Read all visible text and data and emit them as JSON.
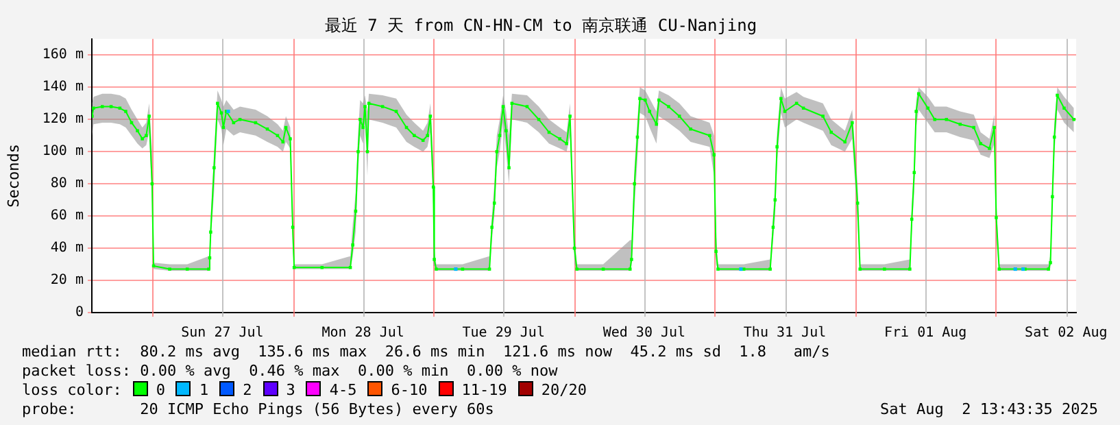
{
  "chart_data": {
    "type": "line",
    "title": "最近 7 天 from CN-HN-CM to 南京联通 CU-Nanjing",
    "ylabel": "Seconds",
    "xlim": [
      "2025-07-26T13:43",
      "2025-08-02T13:43"
    ],
    "xticks": [
      {
        "value": "2025-07-27T00:00",
        "label": null
      },
      {
        "value": "2025-07-27T12:00",
        "label": "Sun 27 Jul"
      },
      {
        "value": "2025-07-28T00:00",
        "label": null
      },
      {
        "value": "2025-07-28T12:00",
        "label": "Mon 28 Jul"
      },
      {
        "value": "2025-07-29T00:00",
        "label": null
      },
      {
        "value": "2025-07-29T12:00",
        "label": "Tue 29 Jul"
      },
      {
        "value": "2025-07-30T00:00",
        "label": null
      },
      {
        "value": "2025-07-30T12:00",
        "label": "Wed 30 Jul"
      },
      {
        "value": "2025-07-31T00:00",
        "label": null
      },
      {
        "value": "2025-07-31T12:00",
        "label": "Thu 31 Jul"
      },
      {
        "value": "2025-08-01T00:00",
        "label": null
      },
      {
        "value": "2025-08-01T12:00",
        "label": "Fri 01 Aug"
      },
      {
        "value": "2025-08-02T00:00",
        "label": null
      },
      {
        "value": "2025-08-02T12:00",
        "label": "Sat 02 Aug"
      }
    ],
    "ylim": [
      0,
      170
    ],
    "yticks": [
      0,
      {
        "value": 20,
        "label": "20 m"
      },
      {
        "value": 40,
        "label": "40 m"
      },
      {
        "value": 60,
        "label": "60 m"
      },
      {
        "value": 80,
        "label": "80 m"
      },
      {
        "value": 100,
        "label": "100 m"
      },
      {
        "value": 120,
        "label": "120 m"
      },
      {
        "value": 140,
        "label": "140 m"
      },
      {
        "value": 160,
        "label": "160 m"
      }
    ],
    "grid": true,
    "legend": "bottom",
    "legend_title": "loss color:",
    "marker": "square",
    "annotations": [
      "median rtt:  80.2 ms avg  135.6 ms max  26.6 ms min  121.6 ms now  45.2 ms sd  1.8   am/s",
      "packet loss: 0.00 % avg  0.46 % max  0.00 % min  0.00 % now",
      "probe:       20 ICMP Echo Pings (56 Bytes) every 60s",
      "Sat Aug  2 13:43:35 2025"
    ],
    "series": [
      {
        "name": "0",
        "color": "#00ff00",
        "x": [
          "2025-07-26T13:45",
          "2025-07-26T14:00",
          "2025-07-26T15:30",
          "2025-07-26T17:00",
          "2025-07-26T18:30",
          "2025-07-26T19:30",
          "2025-07-26T20:30",
          "2025-07-26T21:30",
          "2025-07-26T22:20",
          "2025-07-26T23:00",
          "2025-07-26T23:30",
          "2025-07-27T00:00",
          "2025-07-27T00:15",
          "2025-07-27T03:00",
          "2025-07-27T06:00",
          "2025-07-27T09:40",
          "2025-07-27T09:50",
          "2025-07-27T10:00",
          "2025-07-27T10:35",
          "2025-07-27T11:10",
          "2025-07-27T11:50",
          "2025-07-27T12:10",
          "2025-07-27T12:40",
          "2025-07-27T13:55",
          "2025-07-27T15:00",
          "2025-07-27T17:40",
          "2025-07-27T19:40",
          "2025-07-27T21:25",
          "2025-07-27T22:20",
          "2025-07-27T22:50",
          "2025-07-27T23:35",
          "2025-07-28T00:00",
          "2025-07-28T00:15",
          "2025-07-28T05:00",
          "2025-07-28T09:50",
          "2025-07-28T10:15",
          "2025-07-28T10:45",
          "2025-07-28T11:10",
          "2025-07-28T11:30",
          "2025-07-28T12:00",
          "2025-07-28T12:20",
          "2025-07-28T12:45",
          "2025-07-28T13:00",
          "2025-07-28T15:20",
          "2025-07-28T17:40",
          "2025-07-28T19:25",
          "2025-07-28T20:45",
          "2025-07-28T22:15",
          "2025-07-28T23:00",
          "2025-07-28T23:30",
          "2025-07-29T00:00",
          "2025-07-29T00:10",
          "2025-07-29T00:30",
          "2025-07-29T05:00",
          "2025-07-29T09:35",
          "2025-07-29T10:00",
          "2025-07-29T10:25",
          "2025-07-29T10:50",
          "2025-07-29T11:20",
          "2025-07-29T11:55",
          "2025-07-29T12:25",
          "2025-07-29T12:55",
          "2025-07-29T13:25",
          "2025-07-29T16:00",
          "2025-07-29T18:00",
          "2025-07-29T19:45",
          "2025-07-29T21:35",
          "2025-07-29T22:45",
          "2025-07-29T23:20",
          "2025-07-30T00:05",
          "2025-07-30T00:30",
          "2025-07-30T05:00",
          "2025-07-30T09:35",
          "2025-07-30T09:50",
          "2025-07-30T10:20",
          "2025-07-30T10:50",
          "2025-07-30T11:15",
          "2025-07-30T12:10",
          "2025-07-30T12:55",
          "2025-07-30T14:05",
          "2025-07-30T14:30",
          "2025-07-30T16:10",
          "2025-07-30T18:00",
          "2025-07-30T19:55",
          "2025-07-30T23:10",
          "2025-07-30T23:55",
          "2025-07-31T00:15",
          "2025-07-31T00:35",
          "2025-07-31T05:00",
          "2025-07-31T09:30",
          "2025-07-31T10:00",
          "2025-07-31T10:20",
          "2025-07-31T10:40",
          "2025-07-31T11:20",
          "2025-07-31T12:00",
          "2025-07-31T14:00",
          "2025-07-31T15:10",
          "2025-07-31T18:30",
          "2025-07-31T19:55",
          "2025-07-31T22:15",
          "2025-07-31T23:30",
          "2025-08-01T00:25",
          "2025-08-01T00:50",
          "2025-08-01T05:00",
          "2025-08-01T09:20",
          "2025-08-01T09:40",
          "2025-08-01T10:05",
          "2025-08-01T10:25",
          "2025-08-01T10:50",
          "2025-08-01T12:25",
          "2025-08-01T13:35",
          "2025-08-01T15:35",
          "2025-08-01T17:55",
          "2025-08-01T20:15",
          "2025-08-01T21:25",
          "2025-08-01T22:55",
          "2025-08-01T23:45",
          "2025-08-02T00:05",
          "2025-08-02T00:35",
          "2025-08-02T05:00",
          "2025-08-02T09:00",
          "2025-08-02T09:20",
          "2025-08-02T09:40",
          "2025-08-02T10:00",
          "2025-08-02T10:30",
          "2025-08-02T11:40",
          "2025-08-02T13:20"
        ],
        "values": [
          122,
          127,
          128,
          128,
          127,
          125,
          118,
          113,
          108,
          110,
          122,
          80,
          29,
          27,
          27,
          27,
          34,
          50,
          90,
          130,
          124,
          115,
          125,
          118,
          120,
          118,
          114,
          110,
          106,
          115,
          108,
          53,
          28,
          28,
          28,
          42,
          63,
          100,
          120,
          115,
          128,
          100,
          130,
          128,
          125,
          115,
          110,
          107,
          110,
          122,
          78,
          33,
          27,
          27,
          27,
          53,
          68,
          100,
          110,
          128,
          113,
          90,
          130,
          128,
          120,
          112,
          108,
          105,
          122,
          40,
          27,
          27,
          27,
          33,
          80,
          109,
          133,
          132,
          125,
          117,
          132,
          128,
          122,
          114,
          110,
          98,
          38,
          27,
          27,
          27,
          53,
          70,
          103,
          133,
          125,
          130,
          127,
          122,
          112,
          106,
          118,
          68,
          27,
          27,
          27,
          58,
          87,
          125,
          136,
          127,
          120,
          120,
          117,
          115,
          105,
          102,
          115,
          59,
          27,
          27,
          27,
          31,
          72,
          109,
          135,
          127,
          120
        ],
        "lower": [
          110,
          117,
          118,
          118,
          117,
          115,
          110,
          105,
          102,
          104,
          112,
          70,
          27,
          26,
          26,
          26,
          30,
          45,
          75,
          120,
          114,
          104,
          114,
          110,
          112,
          110,
          106,
          103,
          100,
          106,
          102,
          40,
          27,
          27,
          27,
          35,
          50,
          88,
          110,
          105,
          118,
          85,
          120,
          118,
          115,
          106,
          103,
          100,
          103,
          112,
          65,
          29,
          26,
          26,
          26,
          45,
          60,
          90,
          100,
          118,
          100,
          80,
          120,
          118,
          112,
          105,
          102,
          100,
          110,
          30,
          26,
          26,
          26,
          29,
          65,
          95,
          124,
          122,
          115,
          105,
          122,
          118,
          113,
          106,
          103,
          85,
          30,
          26,
          26,
          26,
          45,
          60,
          92,
          124,
          115,
          120,
          118,
          113,
          104,
          100,
          108,
          55,
          26,
          26,
          26,
          50,
          75,
          115,
          126,
          118,
          112,
          112,
          109,
          107,
          98,
          96,
          105,
          45,
          26,
          26,
          26,
          28,
          60,
          98,
          126,
          118,
          112
        ],
        "upper": [
          130,
          134,
          136,
          136,
          135,
          133,
          126,
          120,
          115,
          118,
          130,
          100,
          31,
          30,
          30,
          35,
          40,
          60,
          100,
          138,
          132,
          128,
          132,
          126,
          128,
          126,
          122,
          117,
          113,
          122,
          115,
          60,
          30,
          30,
          35,
          55,
          75,
          112,
          132,
          130,
          135,
          125,
          136,
          135,
          133,
          123,
          118,
          113,
          118,
          130,
          95,
          40,
          30,
          30,
          35,
          60,
          80,
          110,
          120,
          135,
          125,
          110,
          136,
          135,
          128,
          120,
          115,
          112,
          130,
          50,
          30,
          30,
          45,
          45,
          90,
          120,
          140,
          138,
          133,
          125,
          138,
          135,
          130,
          122,
          118,
          110,
          50,
          30,
          30,
          33,
          60,
          80,
          112,
          140,
          133,
          137,
          134,
          130,
          120,
          113,
          126,
          80,
          30,
          30,
          33,
          66,
          95,
          132,
          140,
          134,
          128,
          128,
          125,
          123,
          112,
          108,
          123,
          70,
          30,
          30,
          30,
          36,
          82,
          118,
          140,
          134,
          127
        ]
      },
      {
        "name": "1",
        "type": "scatter",
        "color": "#00b8ff",
        "x": [
          "2025-07-27T13:00",
          "2025-07-29T03:50",
          "2025-07-31T04:30",
          "2025-08-02T03:20",
          "2025-08-02T04:40"
        ],
        "values": [
          125,
          27,
          27,
          27,
          27
        ]
      },
      {
        "name": "2",
        "type": "scatter",
        "color": "#0059ff"
      },
      {
        "name": "3",
        "type": "scatter",
        "color": "#5e00ff"
      },
      {
        "name": "4-5",
        "type": "scatter",
        "color": "#ff00ff"
      },
      {
        "name": "6-10",
        "type": "scatter",
        "color": "#ff5500"
      },
      {
        "name": "11-19",
        "type": "scatter",
        "color": "#ff0000"
      },
      {
        "name": "20/20",
        "type": "scatter",
        "color": "#a10000"
      }
    ]
  }
}
